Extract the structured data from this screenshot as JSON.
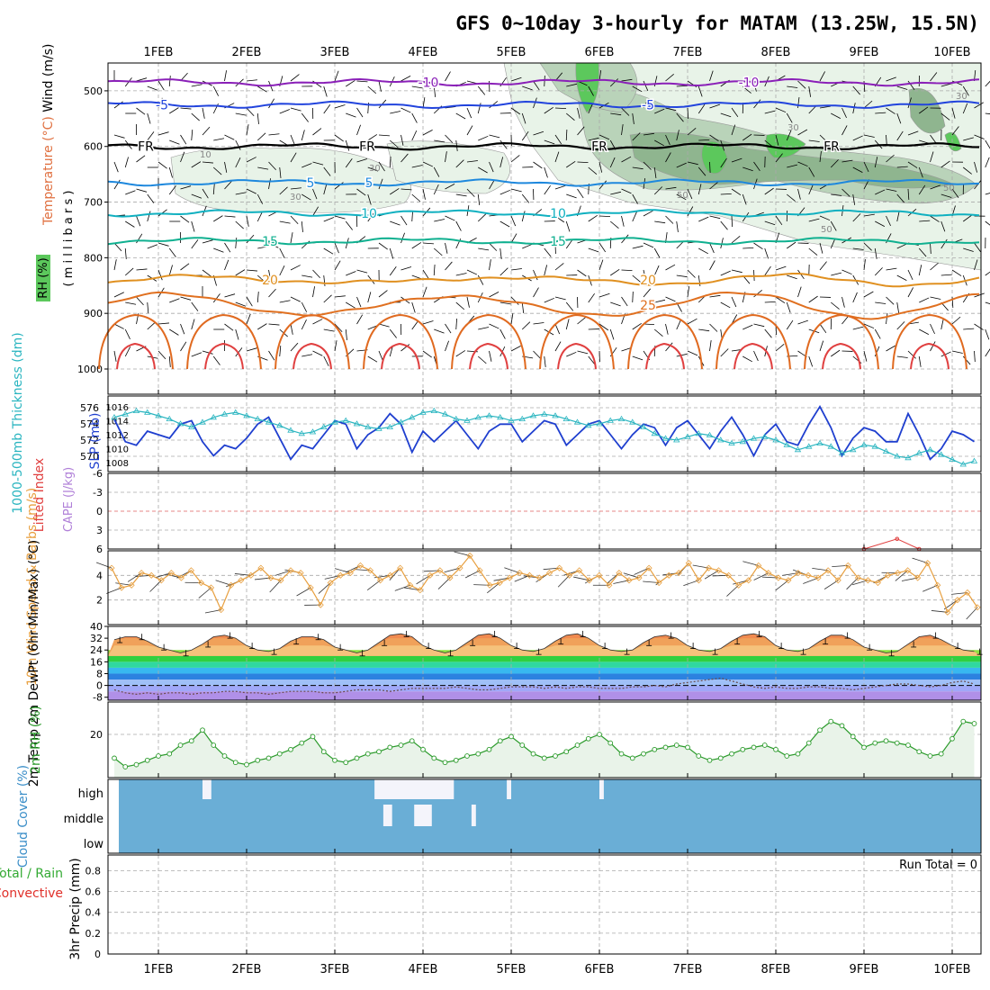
{
  "title": "GFS 0~10day 3-hourly for MATAM (13.25W, 15.5N)",
  "date_labels": [
    "1FEB",
    "2FEB",
    "3FEB",
    "4FEB",
    "5FEB",
    "6FEB",
    "7FEB",
    "8FEB",
    "9FEB",
    "10FEB"
  ],
  "colors": {
    "frame": "#000000",
    "grid": "#aaaaaa",
    "rh_light": "#e8f3e8",
    "rh_mid": "#b9d3b9",
    "rh_dark": "#8fb58f",
    "rh_green": "#5cc85c",
    "slp": "#1f3fcf",
    "thickness": "#2ab5c0",
    "wind10m": "#e8a040",
    "temp_fill": "#f08a50",
    "rh2m": "#2a9a2a",
    "rh2m_fill": "#e9f3e9",
    "cloud_bg": "#6aaed6",
    "cloud_white": "#f4f4fb",
    "precip_total": "#33aa33",
    "precip_conv": "#e0302a",
    "li": "#e04040"
  },
  "chart_data": [
    {
      "panel": "upper-air",
      "type": "contour",
      "ylabel_parts": [
        "Wind (m/s)",
        "Temperature (°C)",
        "RH (%)"
      ],
      "ylabel_units": "( m i l l i b a r s )",
      "yticks": [
        "500",
        "600",
        "700",
        "800",
        "900",
        "1000"
      ],
      "ylim": [
        450,
        1000
      ],
      "isotherms": [
        {
          "label": "-10",
          "level": 485,
          "color": "#8a20b8"
        },
        {
          "label": "-5",
          "level": 525,
          "color": "#2244dd"
        },
        {
          "label": "FR",
          "level": 600,
          "color": "#000000"
        },
        {
          "label": "5",
          "level": 665,
          "color": "#1e88dd"
        },
        {
          "label": "10",
          "level": 720,
          "color": "#10b0c0"
        },
        {
          "label": "15",
          "level": 770,
          "color": "#10b090"
        },
        {
          "label": "20",
          "level": 840,
          "color": "#e09020"
        },
        {
          "label": "25",
          "level": 885,
          "color": "#e07020"
        }
      ],
      "rh_labels": [
        "10",
        "30",
        "30",
        "50",
        "50",
        "30",
        "50",
        "30"
      ]
    },
    {
      "panel": "slp-thickness",
      "type": "line",
      "ylabel_left": "1000-500mb Thickness (dm)",
      "ylabel_right": "SLP (mb)",
      "thickness_ticks": [
        "576",
        "574",
        "572",
        "570"
      ],
      "slp_ticks": [
        "1016",
        "1014",
        "1012",
        "1010",
        "1008"
      ],
      "series": [
        {
          "name": "SLP",
          "values": [
            1014.2,
            1011.0,
            1010.5,
            1012.5,
            1012.0,
            1011.5,
            1013.5,
            1014.0,
            1011.0,
            1009.0,
            1010.5,
            1010.0,
            1011.5,
            1013.5,
            1014.5,
            1011.5,
            1008.5,
            1010.5,
            1010.0,
            1012.0,
            1014.0,
            1013.5,
            1010.0,
            1012.0,
            1013.0,
            1015.0,
            1013.5,
            1009.5,
            1012.5,
            1011.0,
            1012.5,
            1014.0,
            1012.0,
            1010.0,
            1012.5,
            1013.5,
            1013.5,
            1011.0,
            1012.5,
            1014.0,
            1013.5,
            1010.5,
            1012.0,
            1013.5,
            1014.0,
            1012.0,
            1010.0,
            1012.0,
            1013.5,
            1013.0,
            1010.5,
            1013.0,
            1014.0,
            1012.0,
            1010.0,
            1012.5,
            1014.5,
            1012.0,
            1009.0,
            1012.0,
            1013.5,
            1011.0,
            1010.5,
            1013.5,
            1016.0,
            1013.0,
            1009.0,
            1011.5,
            1013.0,
            1012.5,
            1011.0,
            1011.0,
            1015.0,
            1012.0,
            1008.5,
            1010.0,
            1012.5,
            1012.0,
            1011.0
          ],
          "color": "slp"
        },
        {
          "name": "Thickness",
          "values": [
            574.8,
            575.2,
            575.6,
            575.4,
            575.0,
            574.6,
            574.0,
            573.6,
            574.2,
            574.8,
            575.2,
            575.4,
            575.0,
            574.6,
            574.2,
            573.8,
            573.2,
            572.8,
            573.0,
            573.6,
            574.2,
            574.4,
            574.0,
            573.6,
            573.4,
            573.6,
            574.2,
            574.8,
            575.4,
            575.6,
            575.2,
            574.6,
            574.4,
            574.8,
            575.0,
            574.8,
            574.4,
            574.6,
            575.0,
            575.2,
            575.0,
            574.6,
            574.2,
            573.8,
            574.0,
            574.4,
            574.6,
            574.2,
            573.6,
            572.8,
            572.2,
            572.0,
            572.4,
            572.8,
            572.6,
            572.0,
            571.6,
            571.8,
            572.2,
            572.4,
            572.0,
            571.4,
            570.8,
            571.2,
            571.6,
            571.2,
            570.4,
            570.8,
            571.4,
            571.2,
            570.6,
            570.0,
            569.8,
            570.4,
            570.8,
            570.2,
            569.6,
            569.0,
            569.4
          ],
          "color": "thickness"
        }
      ]
    },
    {
      "panel": "stability",
      "type": "line",
      "ylabel_left": "Lifted Index",
      "ylabel_right": "CAPE (J/kg)",
      "yticks": [
        "-6",
        "-3",
        "0",
        "3",
        "6"
      ],
      "ylim": [
        -6,
        6
      ],
      "series": [
        {
          "name": "Lifted Index",
          "segments": [
            [
              [
                68,
                6.0
              ],
              [
                71,
                4.4
              ],
              [
                73,
                6.0
              ]
            ],
            [
              [
                81,
                6.0
              ],
              [
                83,
                5.2
              ],
              [
                86,
                5.2
              ],
              [
                88,
                6.0
              ]
            ],
            [
              [
                95,
                6.0
              ],
              [
                97,
                0.4
              ],
              [
                99,
                0.4
              ],
              [
                101,
                1.8
              ],
              [
                103,
                1.8
              ],
              [
                105,
                3.0
              ],
              [
                106,
                6.0
              ]
            ]
          ],
          "color": "li"
        }
      ]
    },
    {
      "panel": "10m-wind",
      "type": "line",
      "ylabel": "10m Wind Speed & Barbs (m/s)",
      "yticks": [
        "2",
        "4"
      ],
      "ylim": [
        0,
        6
      ],
      "series": [
        {
          "name": "10m Wind Speed",
          "values": [
            4.6,
            3.0,
            3.2,
            4.2,
            4.0,
            3.6,
            4.2,
            3.8,
            4.4,
            3.4,
            3.0,
            1.2,
            3.2,
            3.6,
            4.0,
            4.6,
            3.8,
            3.6,
            4.4,
            4.2,
            3.0,
            1.6,
            3.4,
            4.0,
            4.2,
            4.8,
            4.4,
            3.6,
            4.0,
            4.6,
            3.2,
            2.8,
            4.0,
            4.4,
            3.8,
            4.6,
            5.6,
            4.4,
            3.2,
            3.4,
            3.8,
            4.2,
            4.0,
            3.8,
            4.2,
            4.6,
            4.0,
            4.4,
            3.6,
            4.0,
            3.2,
            4.2,
            3.6,
            3.8,
            4.6,
            3.4,
            4.0,
            4.2,
            5.0,
            3.6,
            4.6,
            4.4,
            4.0,
            3.2,
            3.6,
            4.8,
            4.2,
            3.8,
            3.6,
            4.2,
            4.0,
            3.8,
            4.4,
            3.6,
            4.8,
            3.8,
            3.6,
            3.4,
            4.0,
            4.2,
            4.4,
            3.8,
            5.0,
            3.2,
            1.0,
            2.0,
            2.6,
            1.4
          ],
          "color": "wind10m"
        }
      ]
    },
    {
      "panel": "2m-temp",
      "type": "area",
      "ylabel": "2m Temp 2m DewPt (6hr Min/Max) (°C)",
      "yticks": [
        "40",
        "32",
        "24",
        "16",
        "8",
        "0",
        "-8"
      ],
      "ylim": [
        -10,
        40
      ],
      "series": [
        {
          "name": "2m Temp",
          "values": [
            31,
            33,
            33,
            30,
            26,
            24,
            22,
            24,
            28,
            33,
            34,
            32,
            27,
            24,
            23,
            25,
            30,
            33,
            33,
            31,
            26,
            24,
            22,
            24,
            29,
            34,
            35,
            33,
            27,
            24,
            22,
            24,
            29,
            34,
            35,
            32,
            27,
            24,
            23,
            25,
            30,
            34,
            35,
            32,
            27,
            24,
            23,
            24,
            29,
            33,
            34,
            32,
            27,
            24,
            23,
            25,
            30,
            34,
            35,
            33,
            27,
            24,
            23,
            25,
            30,
            34,
            34,
            31,
            26,
            24,
            22,
            23,
            28,
            33,
            34,
            31,
            27,
            24,
            23
          ],
          "color": "temp_fill"
        },
        {
          "name": "2m DewPt",
          "values": [
            -3,
            -5,
            -6,
            -5,
            -6,
            -5,
            -5,
            -6,
            -5,
            -5,
            -4,
            -4,
            -5,
            -5,
            -6,
            -5,
            -4,
            -4,
            -4,
            -5,
            -5,
            -4,
            -3,
            -3,
            -3,
            -4,
            -3,
            -2,
            -2,
            -2,
            -2,
            -1,
            -2,
            -3,
            -3,
            -2,
            -1,
            -1,
            -1,
            -2,
            -1,
            -2,
            -1,
            -1,
            -2,
            -2,
            -2,
            -1,
            -1,
            0,
            -1,
            1,
            2,
            3,
            4,
            5,
            3,
            1,
            -1,
            -2,
            -1,
            -2,
            -2,
            -1,
            -1,
            -2,
            -2,
            -3,
            -2,
            -1,
            0,
            1,
            1,
            0,
            -1,
            0,
            2,
            3,
            1
          ],
          "color": "rh_mid"
        }
      ]
    },
    {
      "panel": "2m-rh",
      "type": "area",
      "ylabel": "2m RH (%)",
      "yticks": [
        "20"
      ],
      "ylim": [
        0,
        35
      ],
      "series": [
        {
          "name": "2m RH",
          "values": [
            9,
            5,
            6,
            8,
            10,
            11,
            15,
            17,
            22,
            15,
            10,
            7,
            6,
            8,
            9,
            11,
            13,
            16,
            19,
            12,
            8,
            7,
            9,
            11,
            12,
            14,
            15,
            17,
            13,
            9,
            7,
            8,
            10,
            11,
            13,
            17,
            19,
            15,
            11,
            9,
            10,
            12,
            15,
            18,
            20,
            16,
            11,
            9,
            11,
            13,
            14,
            15,
            14,
            10,
            8,
            9,
            11,
            13,
            14,
            15,
            13,
            10,
            11,
            16,
            22,
            26,
            24,
            19,
            14,
            16,
            17,
            16,
            15,
            12,
            10,
            11,
            18,
            26,
            25
          ],
          "color": "rh2m"
        }
      ]
    },
    {
      "panel": "cloud-cover",
      "type": "heatmap",
      "ylabel": "Cloud Cover (%)",
      "levels": [
        "high",
        "middle",
        "low"
      ],
      "high_blocks": [
        [
          20,
          22
        ],
        [
          59,
          77
        ],
        [
          89,
          90
        ],
        [
          110,
          111
        ]
      ],
      "middle_blocks": [
        [
          61,
          63
        ],
        [
          68,
          72
        ],
        [
          81,
          82
        ]
      ],
      "note": "blocks are forecast step index ranges of white (cloudy) fill"
    },
    {
      "panel": "precip",
      "type": "bar",
      "ylabel_left": "Total / Rain Convective",
      "ylabel_right": "3hr Precip (mm)",
      "yticks": [
        "0",
        "0.2",
        "0.4",
        "0.6",
        "0.8"
      ],
      "ylim": [
        0,
        0.95
      ],
      "run_total_label": "Run Total = 0",
      "values": []
    }
  ]
}
